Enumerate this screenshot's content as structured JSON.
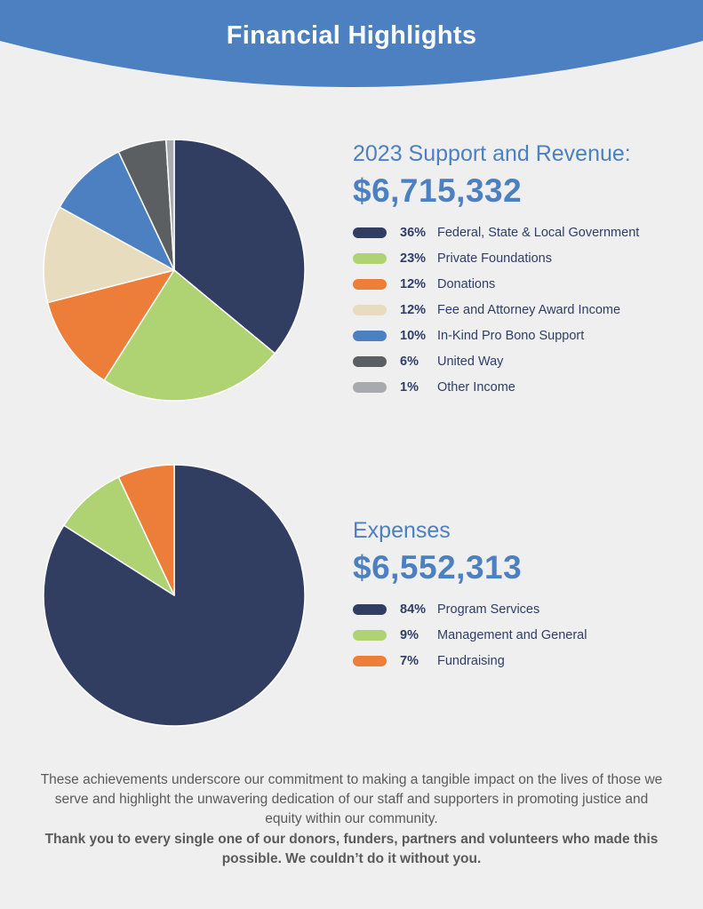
{
  "header": {
    "title": "Financial Highlights",
    "band_color": "#4c80c0"
  },
  "revenue": {
    "heading": "2023 Support and Revenue:",
    "total": "$6,715,332"
  },
  "expenses": {
    "heading": "Expenses",
    "total": "$6,552,313"
  },
  "footer": {
    "paragraph": "These achievements underscore our commitment to making a tangible impact on the lives of those we serve and highlight the unwavering dedication of our staff and supporters in promoting justice and equity within our community.",
    "thanks": "Thank you to every single one of our donors, funders, partners and volunteers who made this possible. We couldn’t do it without you."
  },
  "chart_data": [
    {
      "type": "pie",
      "title": "2023 Support and Revenue:",
      "start_angle": "12 o'clock",
      "direction": "clockwise",
      "slices": [
        {
          "label": "Federal, State & Local Government",
          "pct_label": "36%",
          "value": 36,
          "color": "#323e61"
        },
        {
          "label": "Private Foundations",
          "pct_label": "23%",
          "value": 23,
          "color": "#afd373"
        },
        {
          "label": "Donations",
          "pct_label": "12%",
          "value": 12,
          "color": "#ec7e39"
        },
        {
          "label": "Fee and Attorney Award Income",
          "pct_label": "12%",
          "value": 12,
          "color": "#e7dcbe"
        },
        {
          "label": "In-Kind Pro Bono Support",
          "pct_label": "10%",
          "value": 10,
          "color": "#4d80c0"
        },
        {
          "label": "United Way",
          "pct_label": "6%",
          "value": 6,
          "color": "#5c5f62"
        },
        {
          "label": "Other Income",
          "pct_label": "1%",
          "value": 1,
          "color": "#a9aaad"
        }
      ]
    },
    {
      "type": "pie",
      "title": "Expenses",
      "start_angle": "12 o'clock",
      "direction": "clockwise",
      "slices": [
        {
          "label": "Program Services",
          "pct_label": "84%",
          "value": 84,
          "color": "#323e61"
        },
        {
          "label": "Management and General",
          "pct_label": "9%",
          "value": 9,
          "color": "#afd373"
        },
        {
          "label": "Fundraising",
          "pct_label": "7%",
          "value": 7,
          "color": "#ec7e39"
        }
      ]
    }
  ]
}
